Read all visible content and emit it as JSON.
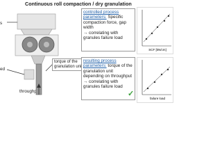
{
  "header": {
    "title": "Continuous roll compaction / dry granulation"
  },
  "left_labels": {
    "top": "s",
    "middle": "ed",
    "bottom": "throughput"
  },
  "torque_box": "torque of the granulation unit",
  "controlled": {
    "heading": "controlled process parameters:",
    "text": "Specific compaction force, gap width",
    "result": "→ correlating with granules failure load"
  },
  "resulting": {
    "heading": "resulting process parameters:",
    "text": "torque of the granulation unit depending on throughput",
    "result": "→ correlating with granules failure load",
    "check": "✓"
  },
  "chart1": {
    "xlabel": "SCF [kN/cm]"
  },
  "chart2": {
    "xlabel": "failure load"
  }
}
